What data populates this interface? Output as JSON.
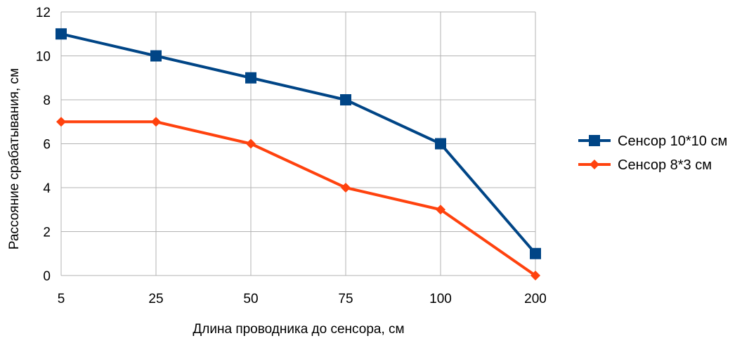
{
  "chart_data": {
    "type": "line",
    "title": "",
    "xlabel": "Длина проводника до сенсора, см",
    "ylabel": "Рассояние срабатывания, см",
    "categories": [
      "5",
      "25",
      "50",
      "75",
      "100",
      "200"
    ],
    "ylim": [
      0,
      12
    ],
    "yticks": [
      0,
      2,
      4,
      6,
      8,
      10,
      12
    ],
    "grid": true,
    "legend_position": "right",
    "series": [
      {
        "name": "Сенсор 10*10 см",
        "values": [
          11,
          10,
          9,
          8,
          6,
          1
        ],
        "color": "#004586",
        "marker": "square"
      },
      {
        "name": "Сенсор 8*3 см",
        "values": [
          7,
          7,
          6,
          4,
          3,
          0
        ],
        "color": "#ff420e",
        "marker": "diamond"
      }
    ],
    "grid_color": "#b3b3b3"
  }
}
